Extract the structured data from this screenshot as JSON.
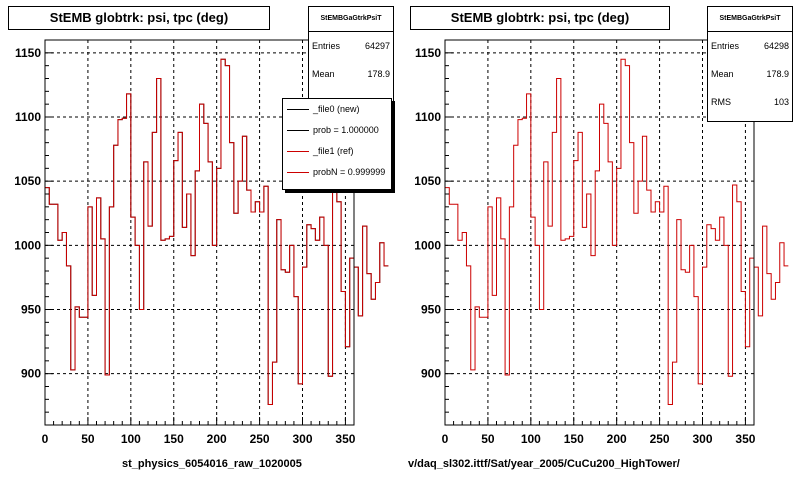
{
  "panels": [
    {
      "title": "StEMB globtrk: psi, tpc (deg)",
      "stats": {
        "name": "StEMBGaGtrkPsiT",
        "rows": [
          {
            "label": "Entries",
            "value": "64297"
          },
          {
            "label": "Mean",
            "value": "178.9"
          }
        ]
      },
      "legend": [
        {
          "label": "_file0 (new)",
          "color": "#000000"
        },
        {
          "label": "prob = 1.000000",
          "color": "#000000"
        },
        {
          "label": "_file1 (ref)",
          "color": "#cc0000"
        },
        {
          "label": "probN = 0.999999",
          "color": "#cc0000"
        }
      ],
      "footer": "st_physics_6054016_raw_1020005"
    },
    {
      "title": "StEMB globtrk: psi, tpc (deg)",
      "stats": {
        "name": "StEMBGaGtrkPsiT",
        "rows": [
          {
            "label": "Entries",
            "value": "64298"
          },
          {
            "label": "Mean",
            "value": "178.9"
          },
          {
            "label": "RMS",
            "value": "103"
          }
        ]
      },
      "legend": [],
      "footer": "v/daq_sl302.ittf/Sat/year_2005/CuCu200_HighTower/"
    }
  ],
  "chart_data": [
    {
      "type": "histogram",
      "title": "StEMB globtrk: psi, tpc (deg)",
      "xlim": [
        0,
        360
      ],
      "ylim": [
        860,
        1160
      ],
      "xticks": [
        0,
        50,
        100,
        150,
        200,
        250,
        300,
        350
      ],
      "yticks": [
        900,
        950,
        1000,
        1050,
        1100,
        1150
      ],
      "grid": true,
      "bin_width": 5,
      "series": [
        {
          "name": "_file0 (new)",
          "color": "#000000",
          "values": [
            1045,
            1032,
            1032,
            1004,
            1010,
            984,
            903,
            952,
            944,
            944,
            1030,
            961,
            1037,
            1005,
            899,
            1030,
            1078,
            1098,
            1099,
            1118,
            1022,
            1000,
            950,
            1065,
            1015,
            1088,
            1130,
            1004,
            1005,
            1007,
            1066,
            1088,
            1014,
            1040,
            992,
            1058,
            1110,
            1095,
            1065,
            1000,
            1060,
            1145,
            1140,
            1080,
            1025,
            1050,
            1085,
            1043,
            1026,
            1034,
            1026,
            1046,
            876,
            909,
            1020,
            981,
            979,
            1000,
            960,
            892,
            983,
            1016,
            1013,
            1004,
            1022,
            1000,
            898,
            1047,
            1034,
            964,
            921,
            990,
            983,
            945,
            1015,
            978,
            958,
            971,
            1002,
            984
          ]
        },
        {
          "name": "_file1 (ref)",
          "color": "#cc0000",
          "values": [
            1045,
            1032,
            1032,
            1004,
            1010,
            984,
            903,
            952,
            944,
            944,
            1030,
            961,
            1037,
            1005,
            899,
            1030,
            1078,
            1098,
            1099,
            1118,
            1022,
            1000,
            950,
            1065,
            1015,
            1088,
            1130,
            1004,
            1005,
            1007,
            1066,
            1088,
            1014,
            1040,
            992,
            1058,
            1110,
            1095,
            1065,
            1000,
            1060,
            1145,
            1140,
            1080,
            1025,
            1050,
            1085,
            1043,
            1026,
            1034,
            1026,
            1046,
            876,
            909,
            1020,
            981,
            979,
            1000,
            960,
            892,
            983,
            1016,
            1013,
            1004,
            1022,
            1000,
            898,
            1047,
            1034,
            964,
            921,
            990,
            983,
            945,
            1015,
            978,
            958,
            971,
            1002,
            984
          ]
        }
      ]
    },
    {
      "type": "histogram",
      "title": "StEMB globtrk: psi, tpc (deg)",
      "xlim": [
        0,
        360
      ],
      "ylim": [
        860,
        1160
      ],
      "xticks": [
        0,
        50,
        100,
        150,
        200,
        250,
        300,
        350
      ],
      "yticks": [
        900,
        950,
        1000,
        1050,
        1100,
        1150
      ],
      "grid": true,
      "bin_width": 5,
      "series": [
        {
          "name": "",
          "color": "#cc0000",
          "values": [
            1045,
            1032,
            1032,
            1004,
            1010,
            984,
            903,
            952,
            944,
            944,
            1030,
            961,
            1037,
            1005,
            899,
            1030,
            1078,
            1098,
            1099,
            1118,
            1022,
            1000,
            950,
            1065,
            1015,
            1088,
            1130,
            1004,
            1005,
            1007,
            1066,
            1088,
            1014,
            1040,
            992,
            1058,
            1110,
            1095,
            1065,
            1000,
            1060,
            1145,
            1140,
            1080,
            1025,
            1050,
            1085,
            1043,
            1026,
            1034,
            1026,
            1046,
            876,
            909,
            1020,
            981,
            979,
            1000,
            960,
            892,
            983,
            1016,
            1013,
            1004,
            1022,
            1000,
            898,
            1047,
            1034,
            964,
            921,
            990,
            983,
            945,
            1015,
            978,
            958,
            971,
            1002,
            984
          ]
        }
      ]
    }
  ]
}
